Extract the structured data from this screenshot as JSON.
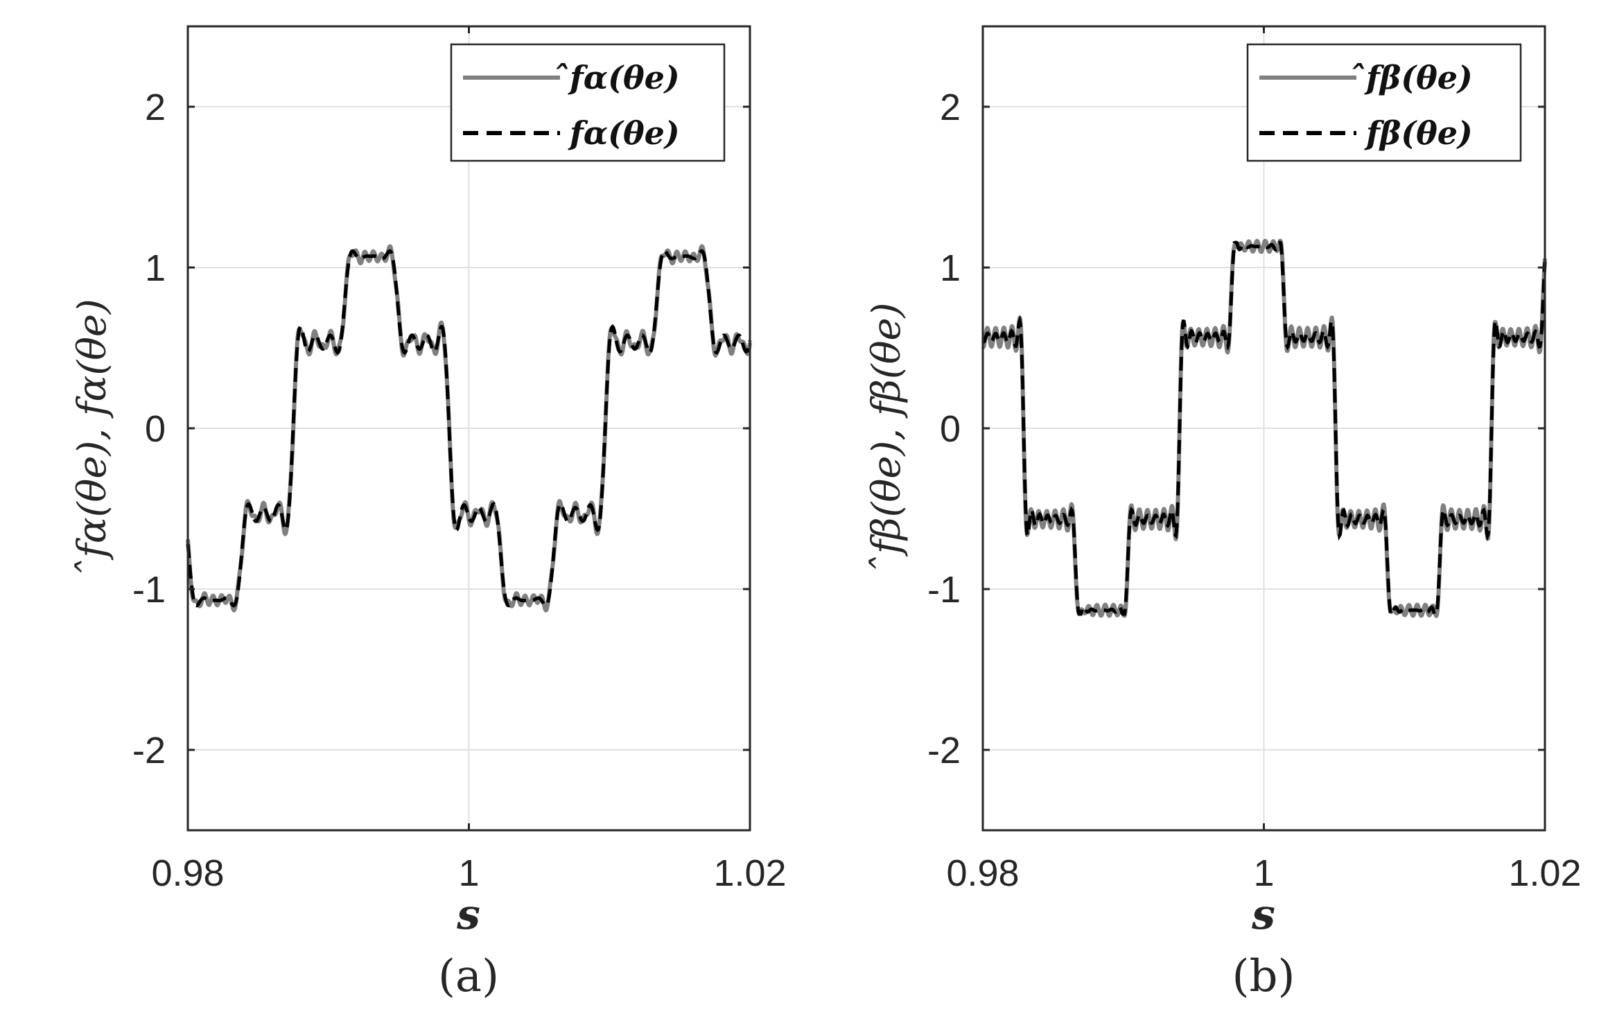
{
  "chart_data": [
    {
      "panel": "a",
      "type": "line",
      "caption": "(a)",
      "xlabel": "s",
      "ylabel": "̂fα(θe), fα(θe)",
      "xlim": [
        0.98,
        1.02
      ],
      "ylim": [
        -2.5,
        2.5
      ],
      "xticks": [
        "0.98",
        "1",
        "1.02"
      ],
      "yticks": [
        "2",
        "1",
        "0",
        "-1",
        "-2"
      ],
      "grid": true,
      "legend_position": "top-right",
      "fundamental_period": 0.0222,
      "phase_at_xmin": 0.0,
      "series": [
        {
          "name": "̂fα(θe)",
          "style": "solid",
          "color": "#808080",
          "ripple": true
        },
        {
          "name": "fα(θe)",
          "style": "dashed",
          "color": "#000000",
          "ripple": false
        }
      ],
      "peak_value": 1.33,
      "trough_value": -1.33
    },
    {
      "panel": "b",
      "type": "line",
      "caption": "(b)",
      "xlabel": "s",
      "ylabel": "̂fβ(θe), fβ(θe)",
      "xlim": [
        0.98,
        1.02
      ],
      "ylim": [
        -2.5,
        2.5
      ],
      "xticks": [
        "0.98",
        "1",
        "1.02"
      ],
      "yticks": [
        "2",
        "1",
        "0",
        "-1",
        "-2"
      ],
      "grid": true,
      "legend_position": "top-right",
      "fundamental_period": 0.0222,
      "phase_at_xmin": 0.0,
      "series": [
        {
          "name": "̂fβ(θe)",
          "style": "solid",
          "color": "#808080",
          "ripple": true
        },
        {
          "name": "fβ(θe)",
          "style": "dashed",
          "color": "#000000",
          "ripple": false
        }
      ],
      "plateau_value": 1.155,
      "trough_value": -1.155
    }
  ]
}
